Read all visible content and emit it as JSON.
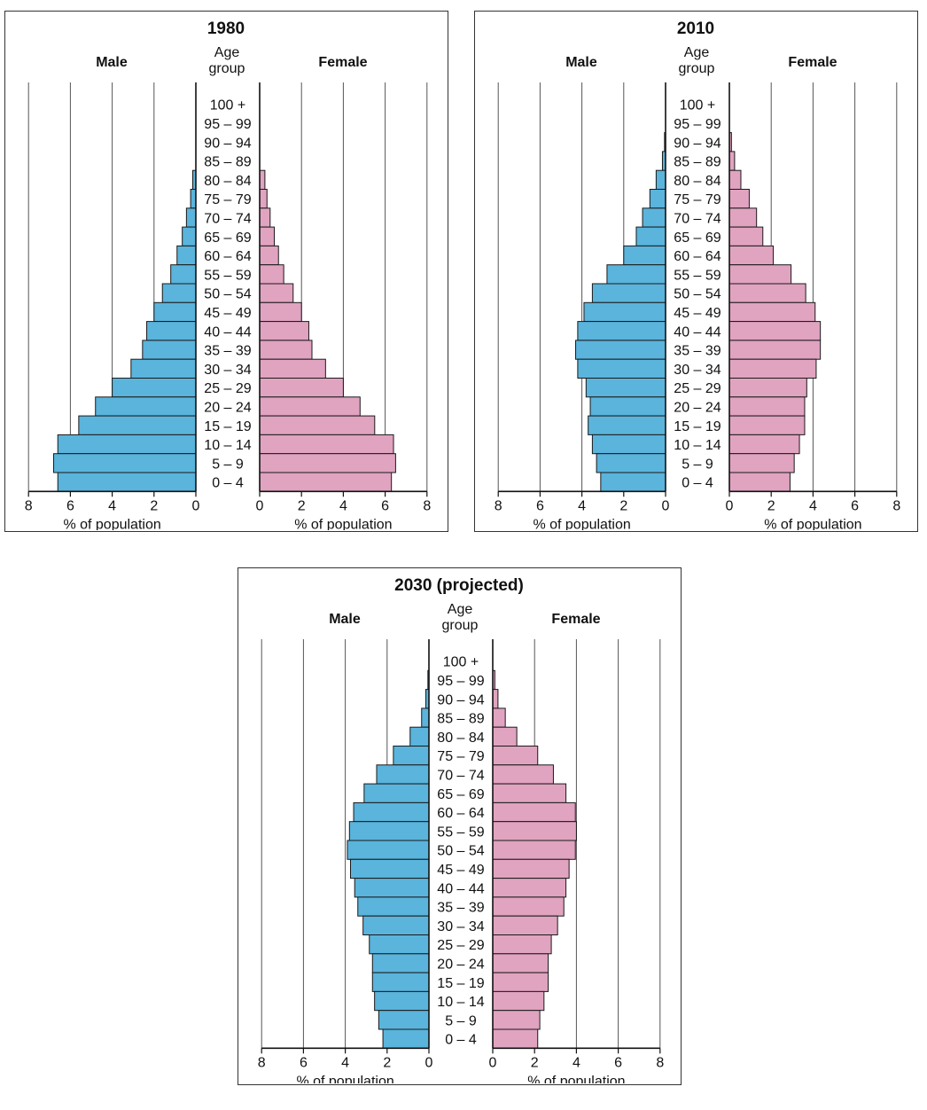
{
  "chart_data": [
    {
      "type": "bar",
      "subtype": "population-pyramid",
      "title": "1980",
      "male_label": "Male",
      "female_label": "Female",
      "category_header": [
        "Age",
        "group"
      ],
      "xlabel": "% of population",
      "xlim": [
        0,
        8
      ],
      "xticks": [
        "0",
        "2",
        "4",
        "6",
        "8"
      ],
      "categories": [
        "100 +",
        "95 – 99",
        "90 – 94",
        "85 – 89",
        "80 – 84",
        "75 – 79",
        "70 – 74",
        "65 – 69",
        "60 – 64",
        "55 – 59",
        "50 – 54",
        "45 – 49",
        "40 – 44",
        "35 – 39",
        "30 – 34",
        "25 – 29",
        "20 – 24",
        "15 – 19",
        "10 – 14",
        "5 – 9",
        "0 – 4"
      ],
      "series": [
        {
          "name": "Male",
          "values": [
            0,
            0,
            0,
            0,
            0.15,
            0.25,
            0.45,
            0.65,
            0.9,
            1.2,
            1.6,
            2.0,
            2.35,
            2.55,
            3.1,
            4.0,
            4.8,
            5.6,
            6.6,
            6.8,
            6.6
          ]
        },
        {
          "name": "Female",
          "values": [
            0,
            0,
            0,
            0,
            0.25,
            0.35,
            0.5,
            0.7,
            0.9,
            1.15,
            1.6,
            2.0,
            2.35,
            2.5,
            3.15,
            4.0,
            4.8,
            5.5,
            6.4,
            6.5,
            6.3
          ]
        }
      ],
      "colors": {
        "male": "#5ab4dc",
        "female": "#e0a3c0"
      },
      "grid": true
    },
    {
      "type": "bar",
      "subtype": "population-pyramid",
      "title": "2010",
      "male_label": "Male",
      "female_label": "Female",
      "category_header": [
        "Age",
        "group"
      ],
      "xlabel": "% of population",
      "xlim": [
        0,
        8
      ],
      "xticks": [
        "0",
        "2",
        "4",
        "6",
        "8"
      ],
      "categories": [
        "100 +",
        "95 – 99",
        "90 – 94",
        "85 – 89",
        "80 – 84",
        "75 – 79",
        "70 – 74",
        "65 – 69",
        "60 – 64",
        "55 – 59",
        "50 – 54",
        "45 – 49",
        "40 – 44",
        "35 – 39",
        "30 – 34",
        "25 – 29",
        "20 – 24",
        "15 – 19",
        "10 – 14",
        "5 – 9",
        "0 – 4"
      ],
      "series": [
        {
          "name": "Male",
          "values": [
            0,
            0,
            0.05,
            0.15,
            0.45,
            0.75,
            1.1,
            1.4,
            2.0,
            2.8,
            3.5,
            3.9,
            4.2,
            4.3,
            4.2,
            3.8,
            3.6,
            3.7,
            3.5,
            3.3,
            3.1
          ]
        },
        {
          "name": "Female",
          "values": [
            0,
            0,
            0.1,
            0.25,
            0.55,
            0.95,
            1.3,
            1.6,
            2.1,
            2.95,
            3.65,
            4.1,
            4.35,
            4.35,
            4.15,
            3.7,
            3.6,
            3.6,
            3.35,
            3.1,
            2.9
          ]
        }
      ],
      "colors": {
        "male": "#5ab4dc",
        "female": "#e0a3c0"
      },
      "grid": true
    },
    {
      "type": "bar",
      "subtype": "population-pyramid",
      "title": "2030 (projected)",
      "male_label": "Male",
      "female_label": "Female",
      "category_header": [
        "Age",
        "group"
      ],
      "xlabel": "% of population",
      "xlim": [
        0,
        8
      ],
      "xticks": [
        "0",
        "2",
        "4",
        "6",
        "8"
      ],
      "categories": [
        "100 +",
        "95 – 99",
        "90 – 94",
        "85 – 89",
        "80 – 84",
        "75 – 79",
        "70 – 74",
        "65 – 69",
        "60 – 64",
        "55 – 59",
        "50 – 54",
        "45 – 49",
        "40 – 44",
        "35 – 39",
        "30 – 34",
        "25 – 29",
        "20 – 24",
        "15 – 19",
        "10 – 14",
        "5 – 9",
        "0 – 4"
      ],
      "series": [
        {
          "name": "Male",
          "values": [
            0,
            0.05,
            0.15,
            0.35,
            0.9,
            1.7,
            2.5,
            3.1,
            3.6,
            3.8,
            3.9,
            3.75,
            3.55,
            3.4,
            3.15,
            2.85,
            2.7,
            2.7,
            2.6,
            2.4,
            2.2
          ]
        },
        {
          "name": "Female",
          "values": [
            0,
            0.1,
            0.25,
            0.6,
            1.15,
            2.15,
            2.9,
            3.5,
            3.95,
            4.0,
            3.95,
            3.65,
            3.5,
            3.4,
            3.1,
            2.8,
            2.65,
            2.65,
            2.45,
            2.25,
            2.15
          ]
        }
      ],
      "colors": {
        "male": "#5ab4dc",
        "female": "#e0a3c0"
      },
      "grid": true
    }
  ]
}
